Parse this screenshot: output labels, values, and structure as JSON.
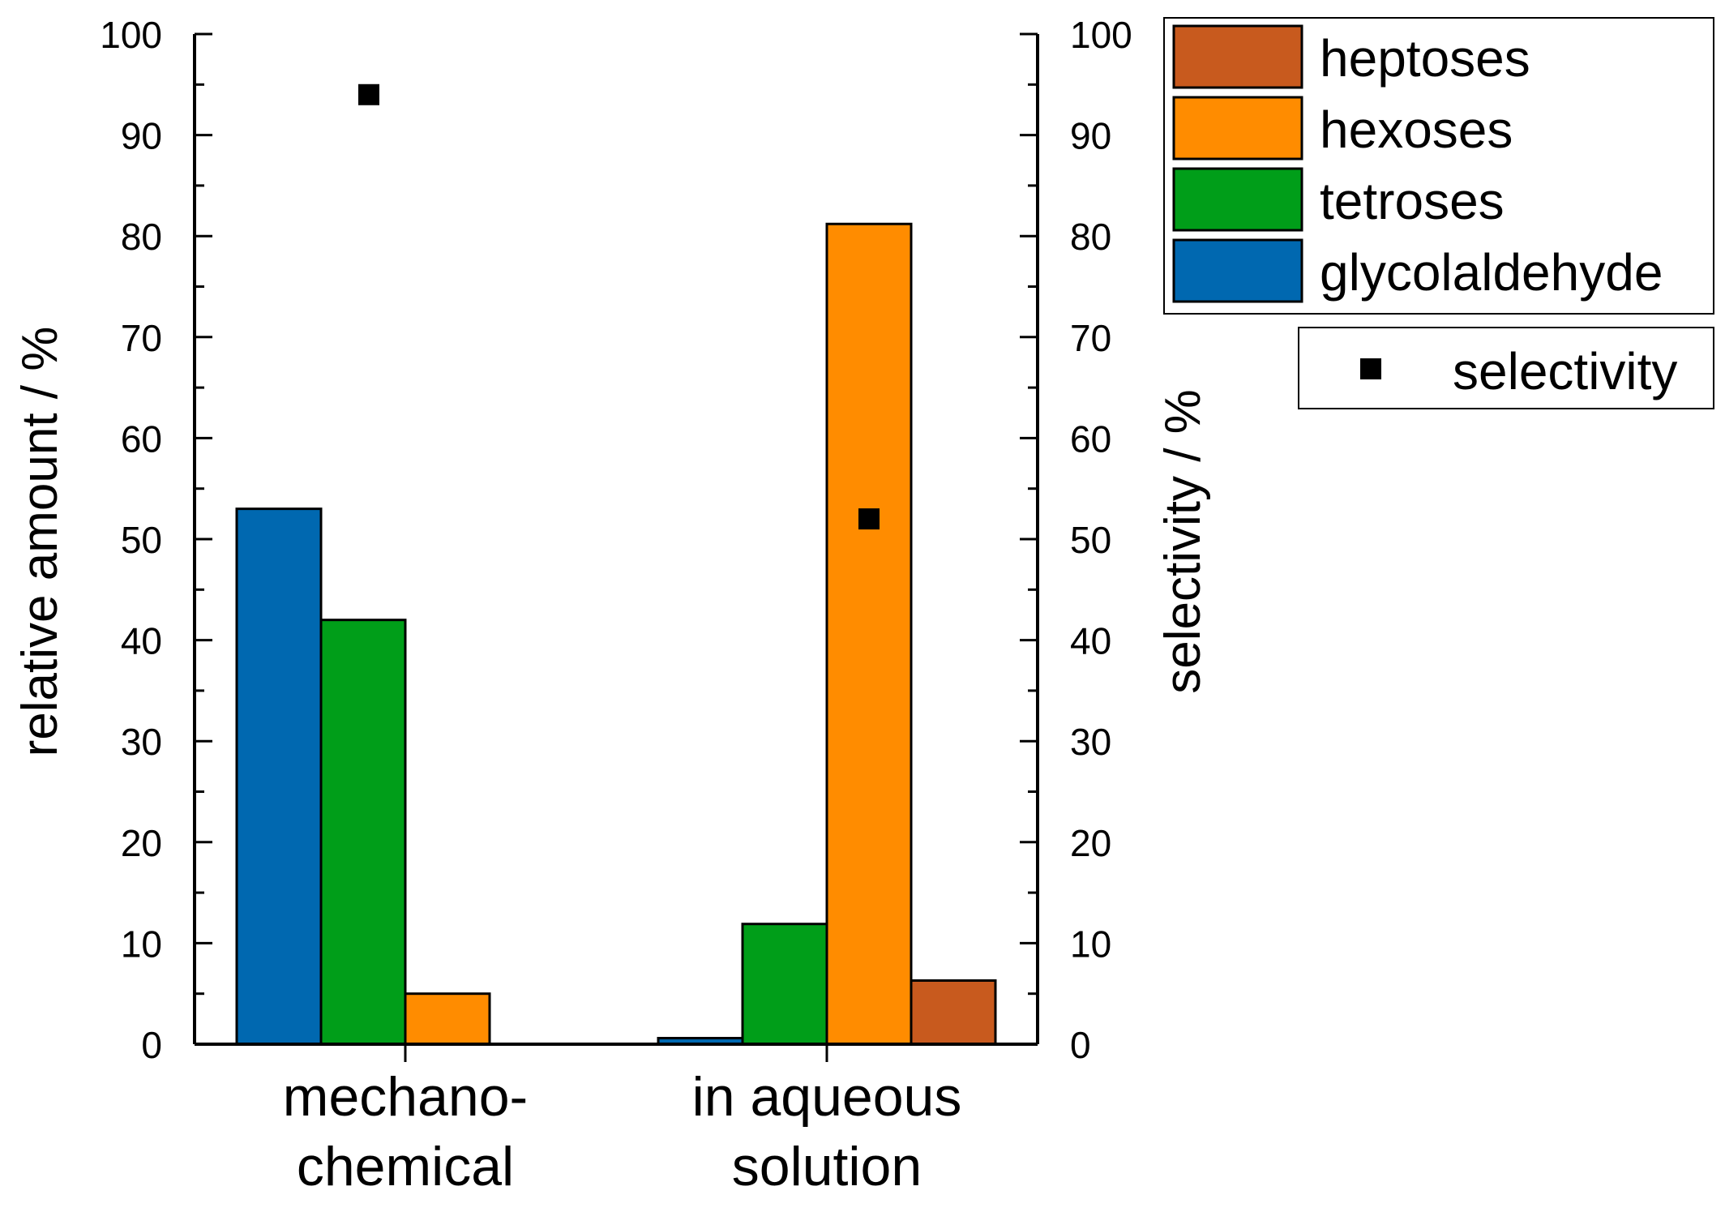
{
  "chart_data": {
    "type": "bar",
    "categories": [
      [
        "mechano-",
        "chemical"
      ],
      [
        "in aqueous",
        "solution"
      ]
    ],
    "series": [
      {
        "name": "glycolaldehyde",
        "color": "#0068B0",
        "values": [
          53,
          0.6
        ]
      },
      {
        "name": "tetroses",
        "color": "#009E19",
        "values": [
          42,
          11.9
        ]
      },
      {
        "name": "hexoses",
        "color": "#FF8C00",
        "values": [
          5,
          81.2
        ]
      },
      {
        "name": "heptoses",
        "color": "#C85A1E",
        "values": [
          0,
          6.3
        ]
      }
    ],
    "scatter_series": {
      "name": "selectivity",
      "color": "#000000",
      "values": [
        94,
        52
      ]
    },
    "legend_order": [
      "heptoses",
      "hexoses",
      "tetroses",
      "glycolaldehyde"
    ],
    "ylabel": "relative amount / %",
    "ylabel_right": "selectivity / %",
    "xlabel": "",
    "ylim": [
      0,
      100
    ],
    "ylim_right": [
      0,
      100
    ],
    "yticks": [
      "0",
      "10",
      "20",
      "30",
      "40",
      "50",
      "60",
      "70",
      "80",
      "90",
      "100"
    ],
    "legend_position": "top-right"
  }
}
